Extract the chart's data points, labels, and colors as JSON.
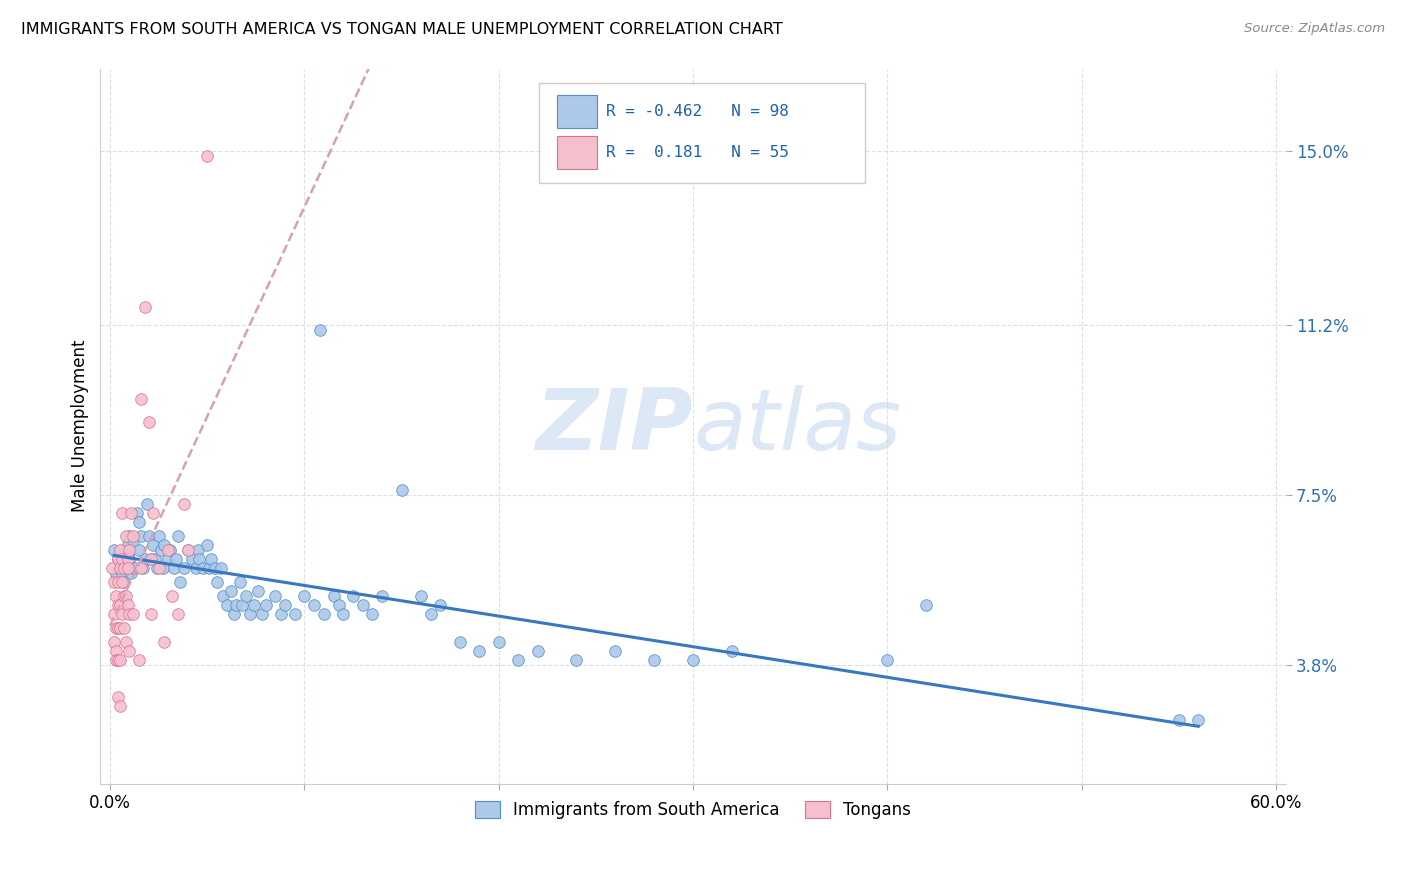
{
  "title": "IMMIGRANTS FROM SOUTH AMERICA VS TONGAN MALE UNEMPLOYMENT CORRELATION CHART",
  "source": "Source: ZipAtlas.com",
  "ylabel": "Male Unemployment",
  "ytick_labels": [
    "15.0%",
    "11.2%",
    "7.5%",
    "3.8%"
  ],
  "ytick_values": [
    0.15,
    0.112,
    0.075,
    0.038
  ],
  "xlim": [
    -0.005,
    0.605
  ],
  "ylim": [
    0.012,
    0.168
  ],
  "xtick_positions": [
    0.0,
    0.1,
    0.2,
    0.3,
    0.4,
    0.5,
    0.6
  ],
  "xtick_labels": [
    "0.0%",
    "",
    "",
    "",
    "",
    "",
    "60.0%"
  ],
  "legend_blue_r": "-0.462",
  "legend_blue_n": "98",
  "legend_pink_r": " 0.181",
  "legend_pink_n": "55",
  "legend_label_blue": "Immigrants from South America",
  "legend_label_pink": "Tongans",
  "color_blue_fill": "#adc8e8",
  "color_blue_edge": "#5090c8",
  "color_pink_fill": "#f5c0ce",
  "color_pink_edge": "#e07090",
  "color_blue_trend": "#3878c0",
  "color_pink_trend": "#d8a0b0",
  "watermark_color": "#dce8f5",
  "blue_points": [
    [
      0.002,
      0.063
    ],
    [
      0.003,
      0.058
    ],
    [
      0.004,
      0.061
    ],
    [
      0.005,
      0.059
    ],
    [
      0.006,
      0.058
    ],
    [
      0.007,
      0.056
    ],
    [
      0.007,
      0.061
    ],
    [
      0.008,
      0.063
    ],
    [
      0.008,
      0.059
    ],
    [
      0.009,
      0.062
    ],
    [
      0.009,
      0.064
    ],
    [
      0.01,
      0.066
    ],
    [
      0.01,
      0.061
    ],
    [
      0.011,
      0.058
    ],
    [
      0.012,
      0.059
    ],
    [
      0.012,
      0.065
    ],
    [
      0.013,
      0.059
    ],
    [
      0.014,
      0.071
    ],
    [
      0.015,
      0.069
    ],
    [
      0.015,
      0.063
    ],
    [
      0.016,
      0.066
    ],
    [
      0.017,
      0.059
    ],
    [
      0.018,
      0.061
    ],
    [
      0.019,
      0.073
    ],
    [
      0.02,
      0.066
    ],
    [
      0.021,
      0.061
    ],
    [
      0.022,
      0.064
    ],
    [
      0.023,
      0.061
    ],
    [
      0.024,
      0.059
    ],
    [
      0.025,
      0.066
    ],
    [
      0.026,
      0.063
    ],
    [
      0.027,
      0.059
    ],
    [
      0.028,
      0.064
    ],
    [
      0.03,
      0.061
    ],
    [
      0.031,
      0.063
    ],
    [
      0.033,
      0.059
    ],
    [
      0.034,
      0.061
    ],
    [
      0.035,
      0.066
    ],
    [
      0.036,
      0.056
    ],
    [
      0.038,
      0.059
    ],
    [
      0.04,
      0.063
    ],
    [
      0.042,
      0.061
    ],
    [
      0.044,
      0.059
    ],
    [
      0.045,
      0.063
    ],
    [
      0.046,
      0.061
    ],
    [
      0.048,
      0.059
    ],
    [
      0.05,
      0.064
    ],
    [
      0.051,
      0.059
    ],
    [
      0.052,
      0.061
    ],
    [
      0.054,
      0.059
    ],
    [
      0.055,
      0.056
    ],
    [
      0.057,
      0.059
    ],
    [
      0.058,
      0.053
    ],
    [
      0.06,
      0.051
    ],
    [
      0.062,
      0.054
    ],
    [
      0.064,
      0.049
    ],
    [
      0.065,
      0.051
    ],
    [
      0.067,
      0.056
    ],
    [
      0.068,
      0.051
    ],
    [
      0.07,
      0.053
    ],
    [
      0.072,
      0.049
    ],
    [
      0.074,
      0.051
    ],
    [
      0.076,
      0.054
    ],
    [
      0.078,
      0.049
    ],
    [
      0.08,
      0.051
    ],
    [
      0.085,
      0.053
    ],
    [
      0.088,
      0.049
    ],
    [
      0.09,
      0.051
    ],
    [
      0.095,
      0.049
    ],
    [
      0.1,
      0.053
    ],
    [
      0.105,
      0.051
    ],
    [
      0.108,
      0.111
    ],
    [
      0.11,
      0.049
    ],
    [
      0.115,
      0.053
    ],
    [
      0.118,
      0.051
    ],
    [
      0.12,
      0.049
    ],
    [
      0.125,
      0.053
    ],
    [
      0.13,
      0.051
    ],
    [
      0.135,
      0.049
    ],
    [
      0.14,
      0.053
    ],
    [
      0.15,
      0.076
    ],
    [
      0.16,
      0.053
    ],
    [
      0.165,
      0.049
    ],
    [
      0.17,
      0.051
    ],
    [
      0.18,
      0.043
    ],
    [
      0.19,
      0.041
    ],
    [
      0.2,
      0.043
    ],
    [
      0.21,
      0.039
    ],
    [
      0.22,
      0.041
    ],
    [
      0.24,
      0.039
    ],
    [
      0.26,
      0.041
    ],
    [
      0.28,
      0.039
    ],
    [
      0.3,
      0.039
    ],
    [
      0.32,
      0.041
    ],
    [
      0.4,
      0.039
    ],
    [
      0.42,
      0.051
    ],
    [
      0.55,
      0.026
    ],
    [
      0.56,
      0.026
    ]
  ],
  "pink_points": [
    [
      0.001,
      0.059
    ],
    [
      0.002,
      0.056
    ],
    [
      0.002,
      0.049
    ],
    [
      0.002,
      0.043
    ],
    [
      0.003,
      0.053
    ],
    [
      0.003,
      0.046
    ],
    [
      0.003,
      0.041
    ],
    [
      0.003,
      0.039
    ],
    [
      0.004,
      0.061
    ],
    [
      0.004,
      0.056
    ],
    [
      0.004,
      0.051
    ],
    [
      0.004,
      0.046
    ],
    [
      0.004,
      0.039
    ],
    [
      0.004,
      0.031
    ],
    [
      0.005,
      0.063
    ],
    [
      0.005,
      0.059
    ],
    [
      0.005,
      0.051
    ],
    [
      0.005,
      0.046
    ],
    [
      0.005,
      0.039
    ],
    [
      0.005,
      0.029
    ],
    [
      0.006,
      0.061
    ],
    [
      0.006,
      0.056
    ],
    [
      0.006,
      0.049
    ],
    [
      0.006,
      0.071
    ],
    [
      0.007,
      0.059
    ],
    [
      0.007,
      0.053
    ],
    [
      0.007,
      0.046
    ],
    [
      0.008,
      0.066
    ],
    [
      0.008,
      0.053
    ],
    [
      0.008,
      0.043
    ],
    [
      0.009,
      0.061
    ],
    [
      0.009,
      0.059
    ],
    [
      0.009,
      0.051
    ],
    [
      0.01,
      0.063
    ],
    [
      0.01,
      0.049
    ],
    [
      0.01,
      0.041
    ],
    [
      0.011,
      0.071
    ],
    [
      0.012,
      0.066
    ],
    [
      0.012,
      0.049
    ],
    [
      0.015,
      0.039
    ],
    [
      0.016,
      0.096
    ],
    [
      0.016,
      0.059
    ],
    [
      0.018,
      0.116
    ],
    [
      0.02,
      0.091
    ],
    [
      0.021,
      0.061
    ],
    [
      0.021,
      0.049
    ],
    [
      0.022,
      0.071
    ],
    [
      0.025,
      0.059
    ],
    [
      0.028,
      0.043
    ],
    [
      0.03,
      0.063
    ],
    [
      0.032,
      0.053
    ],
    [
      0.035,
      0.049
    ],
    [
      0.038,
      0.073
    ],
    [
      0.04,
      0.063
    ],
    [
      0.05,
      0.149
    ]
  ]
}
